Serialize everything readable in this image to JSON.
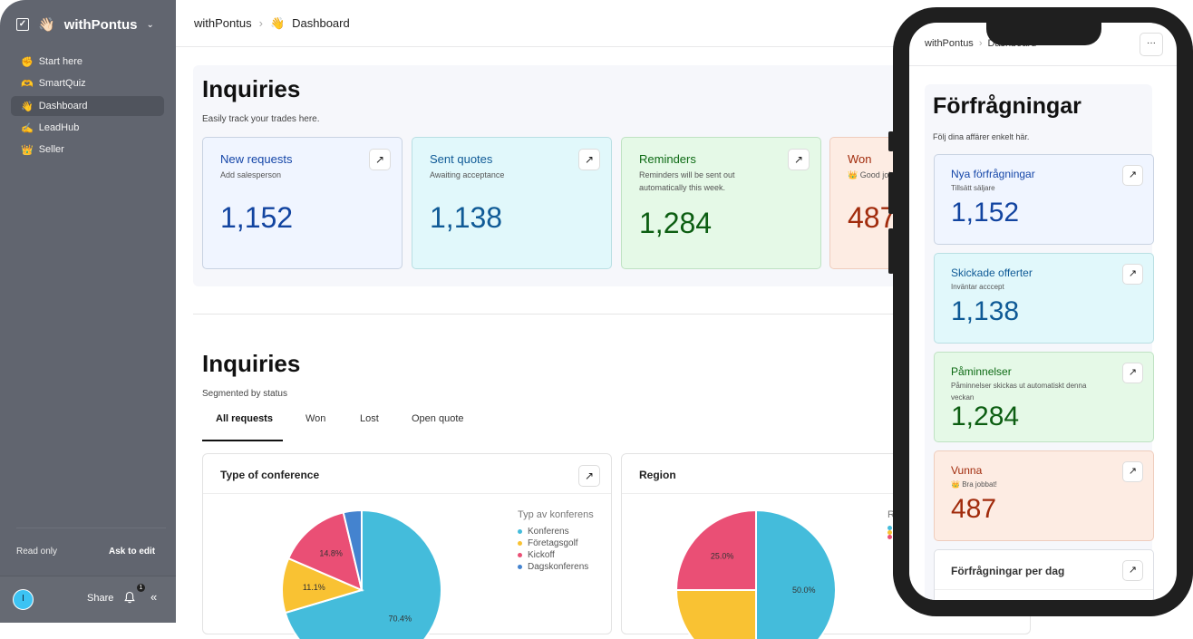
{
  "sidebar": {
    "workspace": "withPontus",
    "workspace_icon": "👋🏻",
    "items": [
      {
        "icon": "✊",
        "label": "Start here"
      },
      {
        "icon": "🫶",
        "label": "SmartQuiz"
      },
      {
        "icon": "👋",
        "label": "Dashboard"
      },
      {
        "icon": "✍️",
        "label": "LeadHub"
      },
      {
        "icon": "👑",
        "label": "Seller"
      }
    ],
    "read_only": "Read only",
    "ask_to_edit": "Ask to edit",
    "avatar_initial": "I",
    "share": "Share",
    "notification_count": "1"
  },
  "header": {
    "breadcrumb_root": "withPontus",
    "breadcrumb_icon": "👋",
    "breadcrumb_page": "Dashboard"
  },
  "summary": {
    "title": "Inquiries",
    "subtitle": "Easily track your trades here.",
    "cards": [
      {
        "title": "New requests",
        "subtitle": "Add salesperson",
        "value": "1,152"
      },
      {
        "title": "Sent quotes",
        "subtitle": "Awaiting acceptance",
        "value": "1,138"
      },
      {
        "title": "Reminders",
        "subtitle": "Reminders will be sent out automatically this week.",
        "value": "1,284"
      },
      {
        "title": "Won",
        "subtitle": "Good job!",
        "value": "487"
      }
    ]
  },
  "segmented": {
    "title": "Inquiries",
    "subtitle": "Segmented by status",
    "tabs": [
      "All requests",
      "Won",
      "Lost",
      "Open quote"
    ],
    "active_tab": "All requests"
  },
  "chart_data": [
    {
      "type": "pie",
      "title": "Type of conference",
      "legend_title": "Typ av konferens",
      "labels": [
        "Konferens",
        "Företagsgolf",
        "Kickoff",
        "Dagskonferens"
      ],
      "values": [
        70.4,
        11.1,
        14.8,
        3.7
      ],
      "value_labels": [
        "70.4%",
        "11.1%",
        "14.8%",
        ""
      ],
      "colors": [
        "#44bcdb",
        "#f9c233",
        "#ea4f75",
        "#4483cf"
      ],
      "legend_placement": "right"
    },
    {
      "type": "pie",
      "title": "Region",
      "legend_title": "R",
      "values": [
        50.0,
        25.0,
        25.0
      ],
      "value_labels": [
        "50.0%",
        "",
        "25.0%"
      ],
      "colors": [
        "#44bcdb",
        "#f9c233",
        "#ea4f75"
      ],
      "legend_placement": "right"
    }
  ],
  "phone": {
    "breadcrumb_root": "withPontus",
    "breadcrumb_page": "Dashboard",
    "menu": "···",
    "title": "Förfrågningar",
    "subtitle": "Följ dina affärer enkelt här.",
    "cards": [
      {
        "title": "Nya förfrågningar",
        "subtitle": "Tillsätt säljare",
        "value": "1,152"
      },
      {
        "title": "Skickade offerter",
        "subtitle": "Inväntar acccept",
        "value": "1,138"
      },
      {
        "title": "Påminnelser",
        "subtitle": "Påminnelser skickas ut automatiskt denna veckan",
        "value": "1,284"
      },
      {
        "title": "Vunna",
        "subtitle": "Bra jobbat!",
        "value": "487"
      }
    ],
    "chart_title": "Förfrågningar per dag"
  }
}
